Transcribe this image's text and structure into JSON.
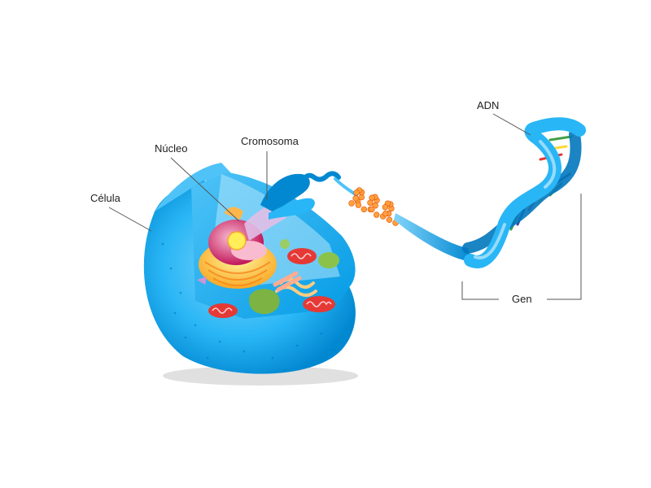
{
  "labels": {
    "cell": "Célula",
    "nucleus": "Núcleo",
    "chromosome": "Cromosoma",
    "dna": "ADN",
    "gene": "Gen"
  },
  "colors": {
    "cell_body": "#29b6f6",
    "cell_dark": "#0288d1",
    "nucleus_yellow": "#fdd835",
    "nucleus_pink": "#f48fb1",
    "nucleolus": "#ffee58",
    "mitochondria": "#e53935",
    "vacuole_green": "#7cb342",
    "chromatin_orange": "#ffa040",
    "dna_blue": "#4fc3f7",
    "base_pairs": [
      "#e53935",
      "#fdd835",
      "#43a047",
      "#3949ab"
    ],
    "leader_line": "#555555"
  }
}
